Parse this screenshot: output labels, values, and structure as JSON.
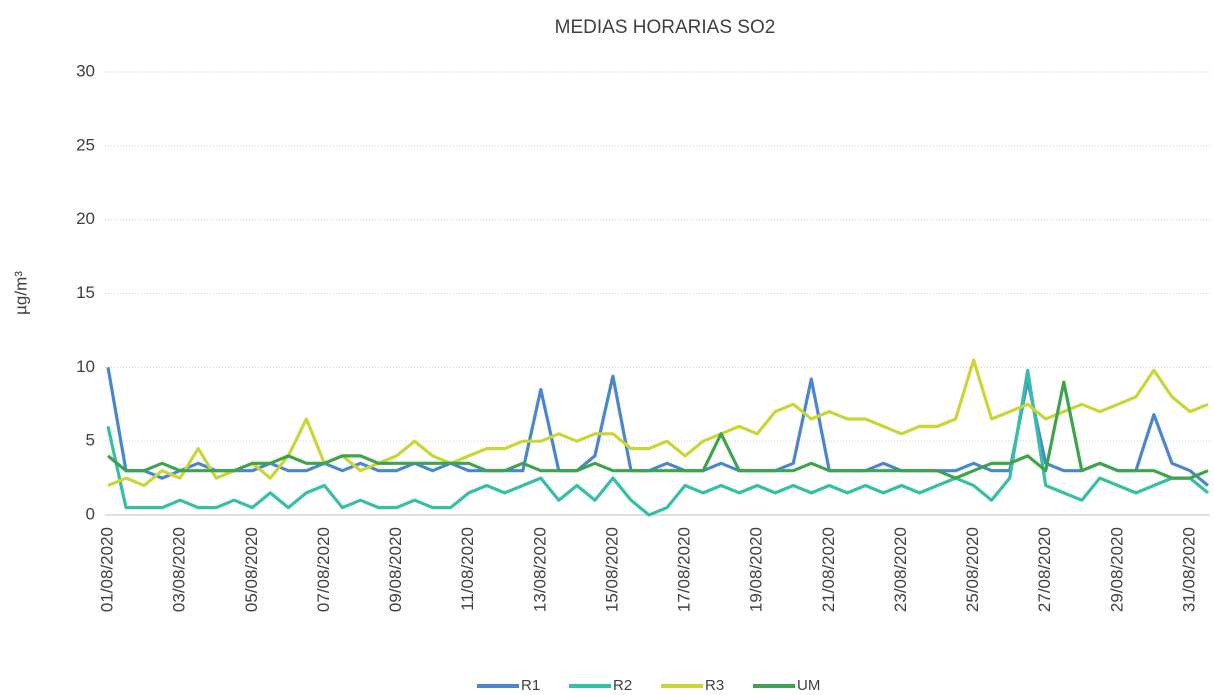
{
  "chart_data": {
    "type": "line",
    "title": "MEDIAS HORARIAS SO2",
    "y_label": "µg/m³",
    "categories": [
      "01/08/2020",
      null,
      null,
      null,
      "03/08/2020",
      null,
      null,
      null,
      "05/08/2020",
      null,
      null,
      null,
      "07/08/2020",
      null,
      null,
      null,
      "09/08/2020",
      null,
      null,
      null,
      "11/08/2020",
      null,
      null,
      null,
      "13/08/2020",
      null,
      null,
      null,
      "15/08/2020",
      null,
      null,
      null,
      "17/08/2020",
      null,
      null,
      null,
      "19/08/2020",
      null,
      null,
      null,
      "21/08/2020",
      null,
      null,
      null,
      "23/08/2020",
      null,
      null,
      null,
      "25/08/2020",
      null,
      null,
      null,
      "27/08/2020",
      null,
      null,
      null,
      "29/08/2020",
      null,
      null,
      null,
      "31/08/2020",
      null
    ],
    "series": [
      {
        "name": "R1",
        "color": "#4a86d0",
        "values": [
          10,
          3,
          3,
          2.5,
          3,
          3.5,
          3,
          3,
          3,
          3.5,
          3,
          3,
          3.5,
          3,
          3.5,
          3,
          3,
          3.5,
          3,
          3.5,
          3,
          3,
          3,
          3,
          8.5,
          3,
          3,
          4,
          9.4,
          3,
          3,
          3.5,
          3,
          3,
          3.5,
          3,
          3,
          3,
          3.5,
          9.2,
          3,
          3,
          3,
          3.5,
          3,
          3,
          3,
          3,
          3.5,
          3,
          3,
          9.1,
          3.5,
          3,
          3,
          3.5,
          3,
          3,
          6.8,
          3.5,
          3,
          2
        ]
      },
      {
        "name": "R2",
        "color": "#36bfa5",
        "values": [
          6,
          0.5,
          0.5,
          0.5,
          1,
          0.5,
          0.5,
          1,
          0.5,
          1.5,
          0.5,
          1.5,
          2,
          0.5,
          1,
          0.5,
          0.5,
          1,
          0.5,
          0.5,
          1.5,
          2,
          1.5,
          2,
          2.5,
          1,
          2,
          1,
          2.5,
          1,
          0,
          0.5,
          2,
          1.5,
          2,
          1.5,
          2,
          1.5,
          2,
          1.5,
          2,
          1.5,
          2,
          1.5,
          2,
          1.5,
          2,
          2.5,
          2,
          1,
          2.5,
          9.8,
          2,
          1.5,
          1,
          2.5,
          2,
          1.5,
          2,
          2.5,
          2.5,
          1.5
        ]
      },
      {
        "name": "R3",
        "color": "#c9d636",
        "values": [
          2,
          2.5,
          2,
          3,
          2.5,
          4.5,
          2.5,
          3,
          3.5,
          2.5,
          4,
          6.5,
          3.5,
          4,
          3,
          3.5,
          4,
          5,
          4,
          3.5,
          4,
          4.5,
          4.5,
          5,
          5,
          5.5,
          5,
          5.5,
          5.5,
          4.5,
          4.5,
          5,
          4,
          5,
          5.5,
          6,
          5.5,
          7,
          7.5,
          6.5,
          7,
          6.5,
          6.5,
          6,
          5.5,
          6,
          6,
          6.5,
          10.5,
          6.5,
          7,
          7.5,
          6.5,
          7,
          7.5,
          7,
          7.5,
          8,
          9.8,
          8,
          7,
          7.5
        ]
      },
      {
        "name": "UM",
        "color": "#3fa34d",
        "values": [
          4,
          3,
          3,
          3.5,
          3,
          3,
          3,
          3,
          3.5,
          3.5,
          4,
          3.5,
          3.5,
          4,
          4,
          3.5,
          3.5,
          3.5,
          3.5,
          3.5,
          3.5,
          3,
          3,
          3.5,
          3,
          3,
          3,
          3.5,
          3,
          3,
          3,
          3,
          3,
          3,
          5.5,
          3,
          3,
          3,
          3,
          3.5,
          3,
          3,
          3,
          3,
          3,
          3,
          3,
          2.5,
          3,
          3.5,
          3.5,
          4,
          3,
          9,
          3,
          3.5,
          3,
          3,
          3,
          2.5,
          2.5,
          3
        ]
      }
    ],
    "ylim": [
      0,
      30
    ],
    "yticks": [
      0,
      5,
      10,
      15,
      20,
      25,
      30
    ],
    "grid": true
  }
}
